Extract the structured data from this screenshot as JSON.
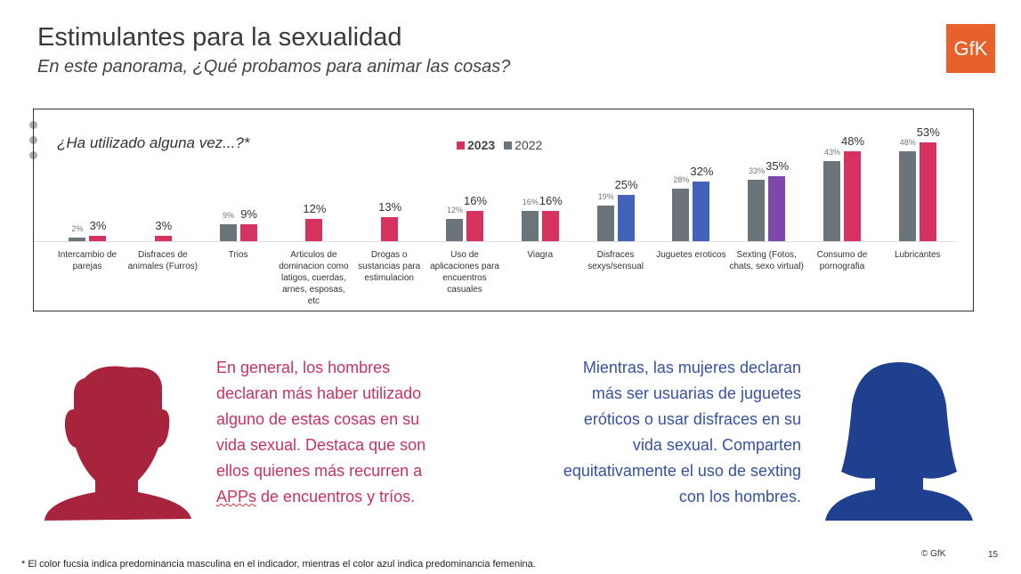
{
  "header": {
    "title": "Estimulantes para la sexualidad",
    "subtitle": "En este panorama, ¿Qué probamos para animar las cosas?",
    "logo_text": "GfK",
    "logo_color": "#e8602a"
  },
  "chart_data": {
    "type": "bar",
    "title": "¿Ha utilizado alguna vez...?*",
    "legend": {
      "placement": "top",
      "items": [
        {
          "name": "2023",
          "color": "#d6325f"
        },
        {
          "name": "2022",
          "color": "#6b7479"
        }
      ]
    },
    "categories": [
      "Intercambio de parejas",
      "Disfraces de animales (Furros)",
      "Trios",
      "Articulos de dominacion como latigos, cuerdas, arnes, esposas, etc",
      "Drogas o sustancias para estimulacion",
      "Uso de aplicaciones para encuentros casuales",
      "Viagra",
      "Disfraces sexys/sensual",
      "Juguetes eroticos",
      "Sexting (Fotos, chats, sexo virtual)",
      "Consumo de pornografia",
      "Lubricantes"
    ],
    "series": [
      {
        "name": "2022",
        "color": "#6b7479",
        "values": [
          2,
          null,
          9,
          null,
          null,
          12,
          16,
          19,
          28,
          33,
          43,
          48
        ]
      },
      {
        "name": "2023",
        "values": [
          3,
          3,
          9,
          12,
          13,
          16,
          16,
          25,
          32,
          35,
          48,
          53
        ],
        "colors": [
          "#d6325f",
          "#d6325f",
          "#d6325f",
          "#d6325f",
          "#d6325f",
          "#d6325f",
          "#d6325f",
          "#4363bb",
          "#4363bb",
          "#7d47ad",
          "#d6325f",
          "#d6325f"
        ]
      }
    ],
    "ylim": [
      0,
      55
    ],
    "grid": false,
    "value_unit": "%"
  },
  "insights": {
    "men": {
      "lines": [
        "En general, los hombres declaran más haber utilizado alguno de estas cosas en su vida sexual. Destaca que son ellos quienes más recurren a "
      ],
      "apps": "APPs",
      "end": " de encuentros y tríos.",
      "color": "#c83262",
      "silhouette_color": "#a8243c"
    },
    "women": {
      "text": "Mientras, las mujeres declaran más ser usuarias de juguetes eróticos o usar disfraces en su vida sexual. Comparten equitativamente el uso de sexting con los hombres.",
      "color": "#3652a3",
      "silhouette_color": "#1f3f8f"
    }
  },
  "footer": {
    "note": "* El color fucsia indica predominancia masculina en el indicador, mientras el color azul indica predominancia femenina.",
    "copyright": "© GfK",
    "page": "15"
  }
}
